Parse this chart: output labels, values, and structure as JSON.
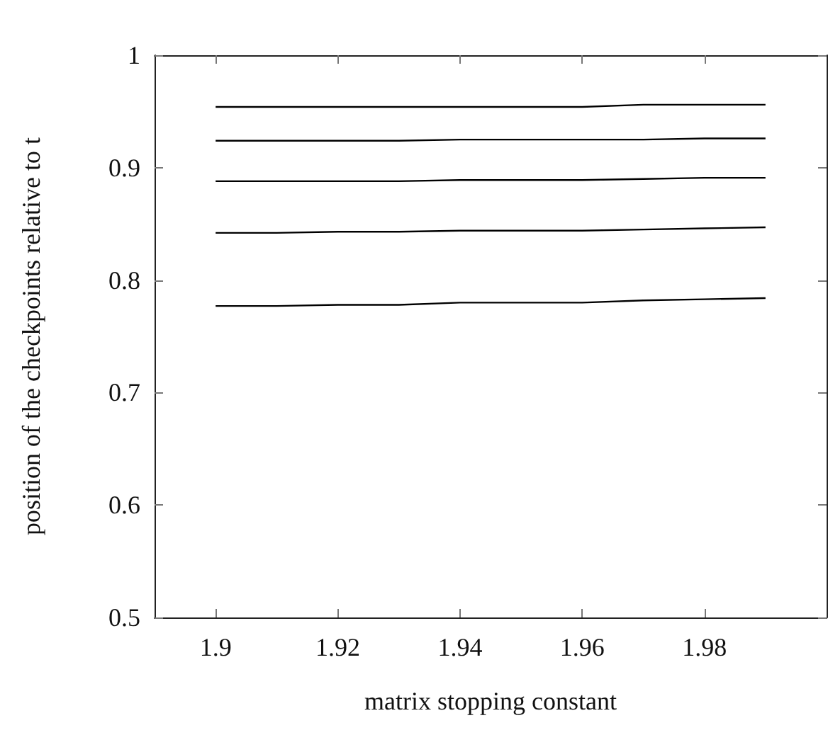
{
  "chart_data": {
    "type": "line",
    "xlabel": "matrix stopping constant",
    "ylabel": "position of the checkpoints relative to t",
    "x": [
      1.9,
      1.91,
      1.92,
      1.93,
      1.94,
      1.95,
      1.96,
      1.97,
      1.98,
      1.99
    ],
    "series": [
      {
        "color": "#000000",
        "values": [
          0.954,
          0.954,
          0.954,
          0.954,
          0.954,
          0.954,
          0.954,
          0.956,
          0.956,
          0.956
        ]
      },
      {
        "color": "#000000",
        "values": [
          0.924,
          0.924,
          0.924,
          0.924,
          0.925,
          0.925,
          0.925,
          0.925,
          0.926,
          0.926
        ]
      },
      {
        "color": "#000000",
        "values": [
          0.888,
          0.888,
          0.888,
          0.888,
          0.889,
          0.889,
          0.889,
          0.89,
          0.891,
          0.891
        ]
      },
      {
        "color": "#000000",
        "values": [
          0.842,
          0.842,
          0.843,
          0.843,
          0.844,
          0.844,
          0.844,
          0.845,
          0.846,
          0.847
        ]
      },
      {
        "color": "#000000",
        "values": [
          0.777,
          0.777,
          0.778,
          0.778,
          0.78,
          0.78,
          0.78,
          0.782,
          0.783,
          0.784
        ]
      }
    ],
    "xlim": [
      1.89,
      2.0
    ],
    "xticks": [
      1.9,
      1.92,
      1.94,
      1.96,
      1.98
    ],
    "ylim": [
      0.5,
      1
    ],
    "yticks": [
      0.5,
      0.6,
      0.7,
      0.8,
      0.9,
      1
    ],
    "grid": false,
    "marker": "none",
    "line_style": "solid"
  }
}
